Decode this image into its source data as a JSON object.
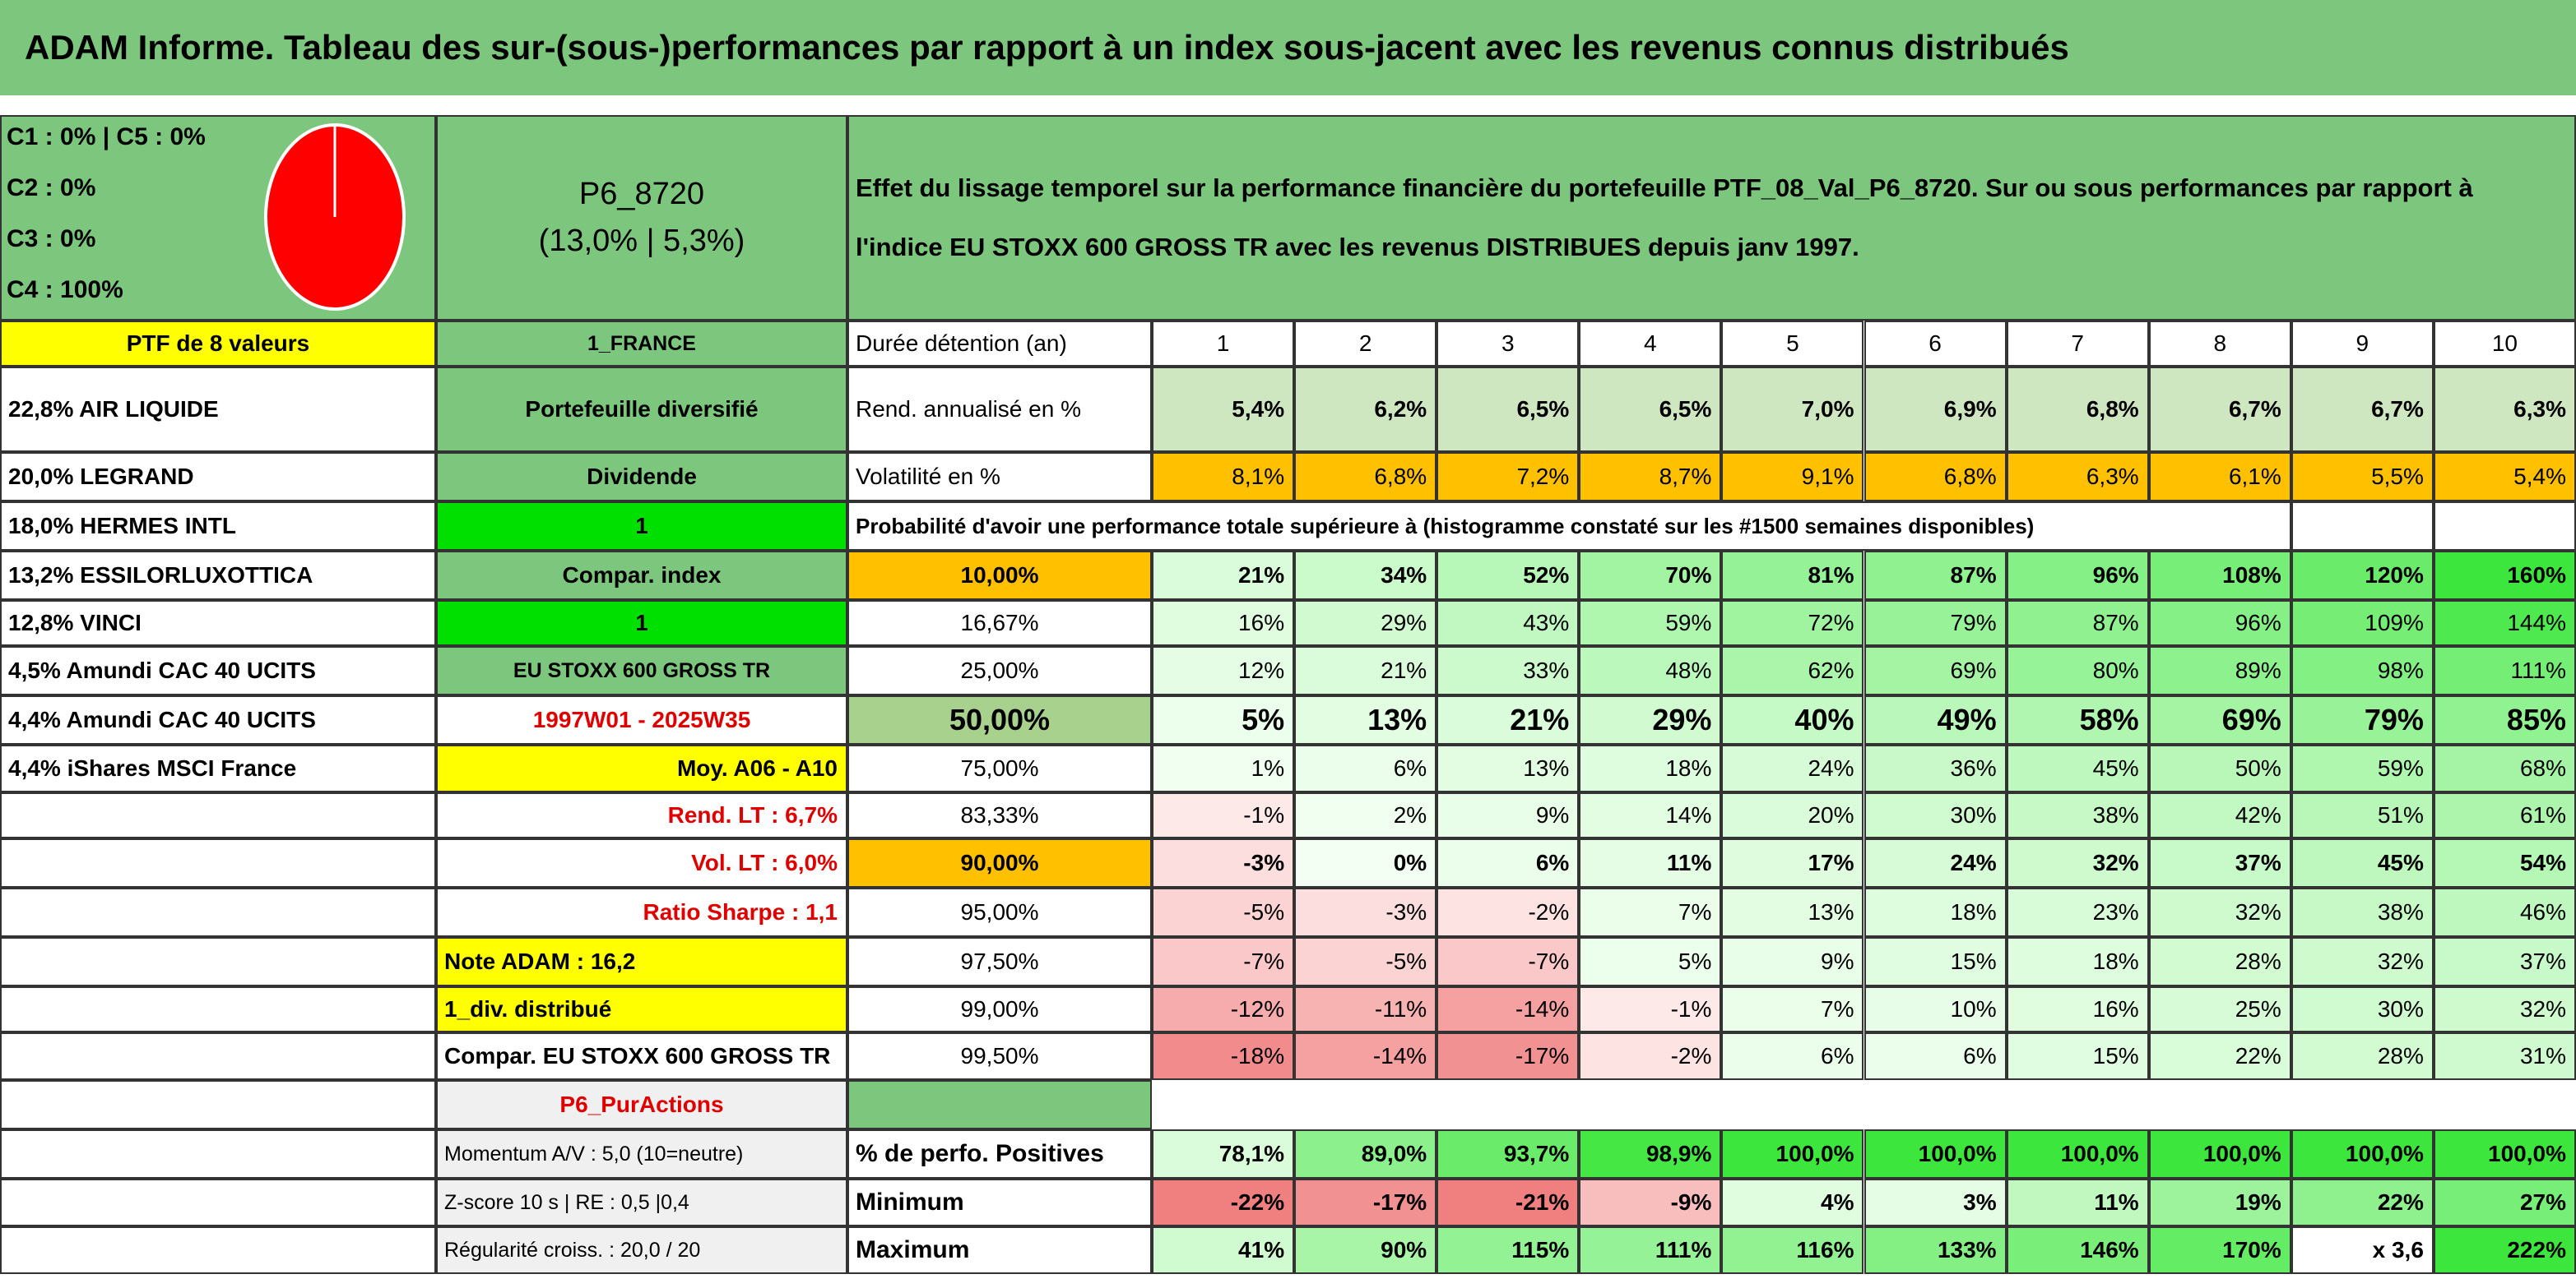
{
  "header": {
    "title": "ADAM Informe. Tableau des sur-(sous-)performances par rapport à un index sous-jacent avec les revenus connus distribués"
  },
  "summary": {
    "classes": [
      "C1 : 0% | C5 : 0%",
      "C2 : 0%",
      "C3 : 0%",
      "C4 : 100%"
    ],
    "portfolio": "P6_8720",
    "stats": "(13,0% | 5,3%)",
    "description": "Effet du lissage temporel sur la performance financière du portefeuille PTF_08_Val_P6_8720. Sur ou sous performances par rapport à l'indice EU STOXX 600 GROSS TR avec les revenus DISTRIBUES depuis janv 1997."
  },
  "holdings": {
    "title": "PTF de 8 valeurs",
    "items": [
      "22,8% AIR LIQUIDE",
      "20,0% LEGRAND",
      "18,0% HERMES INTL",
      "13,2% ESSILORLUXOTTICA",
      "12,8% VINCI",
      "4,5% Amundi CAC 40 UCITS",
      "4,4% Amundi CAC 40 UCITS",
      "4,4% iShares MSCI France"
    ]
  },
  "settings": [
    "1_FRANCE",
    "Portefeuille diversifié",
    "Dividende",
    "1",
    "Compar. index",
    "1",
    "EU STOXX 600 GROSS TR",
    "1997W01 - 2025W35",
    "Moy. A06 - A10",
    "Rend. LT : 6,7%",
    "Vol. LT : 6,0%",
    "Ratio Sharpe : 1,1",
    "Note ADAM : 16,2",
    "1_div. distribué",
    "Compar. EU STOXX 600 GROSS TR",
    "P6_PurActions",
    "Momentum A/V : 5,0 (10=neutre)",
    "Z-score 10 s | RE : 0,5 |0,4",
    "Régularité croiss. : 20,0 / 20"
  ],
  "table": {
    "header": "Durée détention (an)",
    "years": [
      1,
      2,
      3,
      4,
      5,
      6,
      7,
      8,
      9,
      10
    ],
    "annual": {
      "label": "Rend. annualisé en %",
      "values": [
        "5,4%",
        "6,2%",
        "6,5%",
        "6,5%",
        "7,0%",
        "6,9%",
        "6,8%",
        "6,7%",
        "6,7%",
        "6,3%"
      ]
    },
    "volatility": {
      "label": "Volatilité en %",
      "values": [
        "8,1%",
        "6,8%",
        "7,2%",
        "8,7%",
        "9,1%",
        "6,8%",
        "6,3%",
        "6,1%",
        "5,5%",
        "5,4%"
      ]
    },
    "probability_title": "Probabilité d'avoir une performance totale supérieure à (histogramme constaté sur les #1500 semaines disponibles)",
    "probability": [
      {
        "threshold": "10,00%",
        "values": [
          "21%",
          "34%",
          "52%",
          "70%",
          "81%",
          "87%",
          "96%",
          "108%",
          "120%",
          "160%"
        ]
      },
      {
        "threshold": "16,67%",
        "values": [
          "16%",
          "29%",
          "43%",
          "59%",
          "72%",
          "79%",
          "87%",
          "96%",
          "109%",
          "144%"
        ]
      },
      {
        "threshold": "25,00%",
        "values": [
          "12%",
          "21%",
          "33%",
          "48%",
          "62%",
          "69%",
          "80%",
          "89%",
          "98%",
          "111%"
        ]
      },
      {
        "threshold": "50,00%",
        "values": [
          "5%",
          "13%",
          "21%",
          "29%",
          "40%",
          "49%",
          "58%",
          "69%",
          "79%",
          "85%"
        ]
      },
      {
        "threshold": "75,00%",
        "values": [
          "1%",
          "6%",
          "13%",
          "18%",
          "24%",
          "36%",
          "45%",
          "50%",
          "59%",
          "68%"
        ]
      },
      {
        "threshold": "83,33%",
        "values": [
          "-1%",
          "2%",
          "9%",
          "14%",
          "20%",
          "30%",
          "38%",
          "42%",
          "51%",
          "61%"
        ]
      },
      {
        "threshold": "90,00%",
        "values": [
          "-3%",
          "0%",
          "6%",
          "11%",
          "17%",
          "24%",
          "32%",
          "37%",
          "45%",
          "54%"
        ]
      },
      {
        "threshold": "95,00%",
        "values": [
          "-5%",
          "-3%",
          "-2%",
          "7%",
          "13%",
          "18%",
          "23%",
          "32%",
          "38%",
          "46%"
        ]
      },
      {
        "threshold": "97,50%",
        "values": [
          "-7%",
          "-5%",
          "-7%",
          "5%",
          "9%",
          "15%",
          "18%",
          "28%",
          "32%",
          "37%"
        ]
      },
      {
        "threshold": "99,00%",
        "values": [
          "-12%",
          "-11%",
          "-14%",
          "-1%",
          "7%",
          "10%",
          "16%",
          "25%",
          "30%",
          "32%"
        ]
      },
      {
        "threshold": "99,50%",
        "values": [
          "-18%",
          "-14%",
          "-17%",
          "-2%",
          "6%",
          "6%",
          "15%",
          "22%",
          "28%",
          "31%"
        ]
      }
    ],
    "summary": [
      {
        "label": "% de perfo. Positives",
        "values": [
          "78,1%",
          "89,0%",
          "93,7%",
          "98,9%",
          "100,0%",
          "100,0%",
          "100,0%",
          "100,0%",
          "100,0%",
          "100,0%"
        ]
      },
      {
        "label": "Minimum",
        "values": [
          "-22%",
          "-17%",
          "-21%",
          "-9%",
          "4%",
          "3%",
          "11%",
          "19%",
          "22%",
          "27%"
        ]
      },
      {
        "label": "Maximum",
        "values": [
          "41%",
          "90%",
          "115%",
          "111%",
          "116%",
          "133%",
          "146%",
          "170%",
          "x 3,6",
          "222%"
        ]
      }
    ]
  }
}
